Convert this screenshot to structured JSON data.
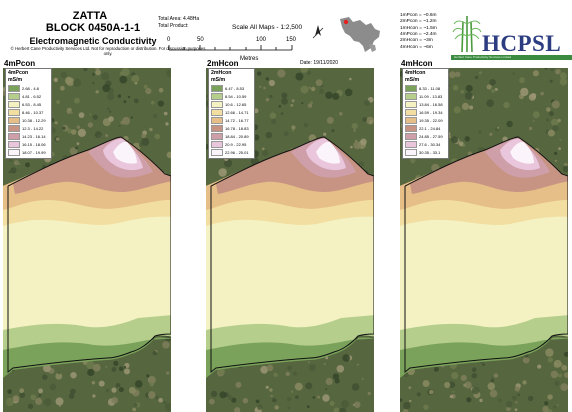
{
  "header": {
    "title_line1": "ZATTA",
    "title_line2": "BLOCK 0450A-1-1",
    "subtitle": "Electromagnetic Conductivity",
    "copyright": "© Herbert Cane Productivity Services Ltd. Not for reproduction or distribution. For discussion purposes only.",
    "total_area": "Total Area: 4.48Ha",
    "total_product": "Total Product:",
    "scale_label": "Scale All Maps - 1:2,500",
    "scale_ticks": [
      "0",
      "50",
      "100",
      "150"
    ],
    "scale_unit": "Metres",
    "date": "Date: 19/11/2020",
    "depth_notes": [
      "1mPcon = ~0.6m",
      "2mPcon = ~1.2m",
      "1mHcon = ~1.5m",
      "4mPcon = ~2.4m",
      "2mHcon = ~3m",
      "4mHcon = ~6m"
    ]
  },
  "logo": {
    "text": "HCPSL",
    "strip_text": "Herbert Cane Productivity Services Limited",
    "icon": "sugarcane-logo-icon"
  },
  "north_arrow": {
    "icon": "north-arrow-icon"
  },
  "locator": {
    "icon": "locator-map-icon"
  },
  "unit": "mS/m",
  "palette": [
    "#7aa25a",
    "#b6ce8c",
    "#f4f2c2",
    "#f2dea0",
    "#e6be88",
    "#c79483",
    "#ce9fa8",
    "#e9c6dc",
    "#fbf4fa"
  ],
  "panels": [
    {
      "title": "4mPcon",
      "legend_title": "4mPcon",
      "ranges": [
        "2.68 - 4.8",
        "4.81 - 6.52",
        "6.53 - 8.45",
        "8.46 - 10.37",
        "10.38 - 12.29",
        "12.3 - 14.22",
        "14.23 - 16.14",
        "16.15 - 18.06",
        "18.07 - 19.99"
      ]
    },
    {
      "title": "2mHcon",
      "legend_title": "2mHcon",
      "ranges": [
        "6.47 - 8.53",
        "8.54 - 10.59",
        "10.6 - 12.65",
        "12.66 - 14.71",
        "14.72 - 16.77",
        "16.78 - 18.83",
        "18.84 - 20.89",
        "20.9 - 22.95",
        "22.96 - 25.01"
      ]
    },
    {
      "title": "4mHcon",
      "legend_title": "4mHcon",
      "ranges": [
        "8.33 - 11.08",
        "11.09 - 13.83",
        "13.84 - 16.58",
        "16.59 - 19.34",
        "19.35 - 22.09",
        "22.1 - 24.84",
        "24.85 - 27.59",
        "27.6 - 30.34",
        "30.35 - 33.1"
      ]
    }
  ]
}
